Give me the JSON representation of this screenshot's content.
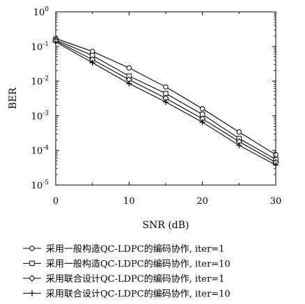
{
  "chart_data": {
    "type": "line",
    "xlabel": "SNR (dB)",
    "ylabel": "BER",
    "xlim": [
      0,
      30
    ],
    "ylim": [
      1e-05,
      1
    ],
    "yscale": "log",
    "grid": false,
    "legend_position": "bottom",
    "x_ticks": [
      {
        "value": 0,
        "label": "0"
      },
      {
        "value": 10,
        "label": "10"
      },
      {
        "value": 20,
        "label": "20"
      },
      {
        "value": 30,
        "label": "30"
      }
    ],
    "y_ticks": [
      {
        "value": 1,
        "base": "10",
        "exp": "0"
      },
      {
        "value": 0.1,
        "base": "10",
        "exp": "-1"
      },
      {
        "value": 0.01,
        "base": "10",
        "exp": "-2"
      },
      {
        "value": 0.001,
        "base": "10",
        "exp": "-3"
      },
      {
        "value": 0.0001,
        "base": "10",
        "exp": "-4"
      },
      {
        "value": 1e-05,
        "base": "10",
        "exp": "-5"
      }
    ],
    "x": [
      0,
      5,
      10,
      15,
      20,
      25,
      30
    ],
    "series": [
      {
        "name": "采用一般构造QC-LDPC的编码协作, iter=1",
        "marker": "circle",
        "values": [
          0.17,
          0.072,
          0.024,
          0.0068,
          0.0016,
          0.00034,
          7.5e-05
        ]
      },
      {
        "name": "采用一般构造QC-LDPC的编码协作, iter=10",
        "marker": "square",
        "values": [
          0.155,
          0.055,
          0.014,
          0.0044,
          0.0011,
          0.00022,
          5.5e-05
        ]
      },
      {
        "name": "采用联合设计QC-LDPC的编码协作, iter=1",
        "marker": "diamond",
        "values": [
          0.145,
          0.042,
          0.011,
          0.0032,
          0.00082,
          0.00018,
          4.5e-05
        ]
      },
      {
        "name": "采用联合设计QC-LDPC的编码协作, iter=10",
        "marker": "plus",
        "values": [
          0.135,
          0.034,
          0.0085,
          0.0025,
          0.00065,
          0.00014,
          3.8e-05
        ]
      }
    ]
  }
}
